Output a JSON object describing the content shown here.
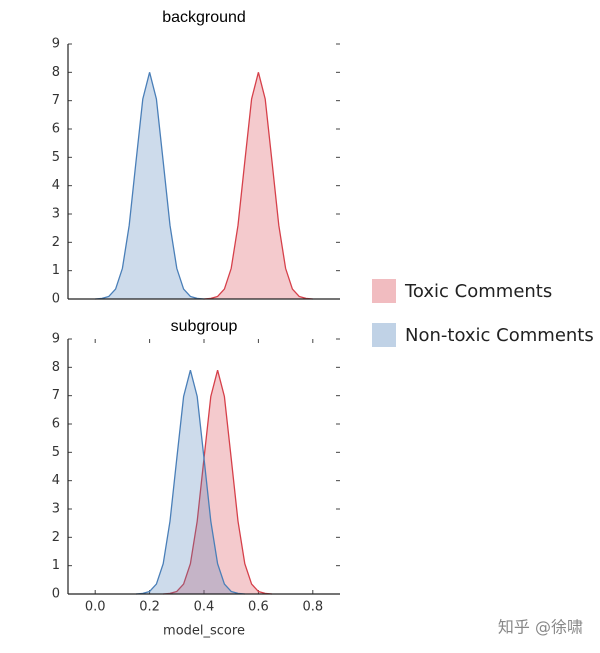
{
  "chart_data": [
    {
      "type": "area",
      "title": "background",
      "x": [
        0,
        0.025,
        0.05,
        0.075,
        0.1,
        0.125,
        0.15,
        0.175,
        0.2,
        0.225,
        0.25,
        0.275,
        0.3,
        0.325,
        0.35,
        0.375,
        0.4,
        0.425,
        0.45,
        0.475,
        0.5,
        0.525,
        0.55,
        0.575,
        0.6,
        0.625,
        0.65,
        0.675,
        0.7,
        0.725,
        0.75,
        0.775,
        0.8
      ],
      "series": [
        {
          "name": "Toxic Comments",
          "color": "#d6404a",
          "values": [
            null,
            null,
            null,
            null,
            null,
            null,
            null,
            null,
            null,
            null,
            null,
            null,
            null,
            null,
            null,
            null,
            0.0,
            0.02,
            0.09,
            0.35,
            1.08,
            2.6,
            4.85,
            7.06,
            8,
            7.06,
            4.85,
            2.6,
            1.08,
            0.35,
            0.09,
            0.02,
            0.0
          ]
        },
        {
          "name": "Non-toxic Comments",
          "color": "#4a7fb8",
          "values": [
            0.0,
            0.02,
            0.09,
            0.35,
            1.08,
            2.6,
            4.85,
            7.06,
            8,
            7.06,
            4.85,
            2.6,
            1.08,
            0.35,
            0.09,
            0.02,
            0.0,
            null,
            null,
            null,
            null,
            null,
            null,
            null,
            null,
            null,
            null,
            null,
            null,
            null,
            null,
            null,
            null
          ]
        }
      ],
      "xlim": [
        -0.1,
        0.9
      ],
      "ylim": [
        0,
        9
      ],
      "yticks": [
        0,
        1,
        2,
        3,
        4,
        5,
        6,
        7,
        8,
        9
      ]
    },
    {
      "type": "area",
      "title": "subgroup",
      "xlabel": "model_score",
      "x": [
        0.15,
        0.175,
        0.2,
        0.225,
        0.25,
        0.275,
        0.3,
        0.325,
        0.35,
        0.375,
        0.4,
        0.425,
        0.45,
        0.475,
        0.5,
        0.525,
        0.55,
        0.575,
        0.6,
        0.625,
        0.65
      ],
      "series": [
        {
          "name": "Toxic Comments",
          "color": "#d6404a",
          "values": [
            null,
            null,
            null,
            null,
            0.0,
            0.02,
            0.09,
            0.35,
            1.07,
            2.57,
            4.79,
            6.97,
            7.9,
            6.97,
            4.79,
            2.57,
            1.07,
            0.35,
            0.09,
            0.02,
            0.0
          ]
        },
        {
          "name": "Non-toxic Comments",
          "color": "#4a7fb8",
          "values": [
            0.0,
            0.02,
            0.09,
            0.35,
            1.07,
            2.57,
            4.79,
            6.97,
            7.9,
            6.97,
            4.79,
            2.57,
            1.07,
            0.35,
            0.09,
            0.02,
            0.0,
            null,
            null,
            null,
            null
          ]
        }
      ],
      "xlim": [
        -0.1,
        0.9
      ],
      "ylim": [
        0,
        9
      ],
      "yticks": [
        0,
        1,
        2,
        3,
        4,
        5,
        6,
        7,
        8,
        9
      ],
      "xticks": [
        {
          "value": 0,
          "label": "0.0"
        },
        0.2,
        0.4,
        0.6,
        0.8
      ]
    }
  ],
  "watermark": "知乎 @徐啸"
}
